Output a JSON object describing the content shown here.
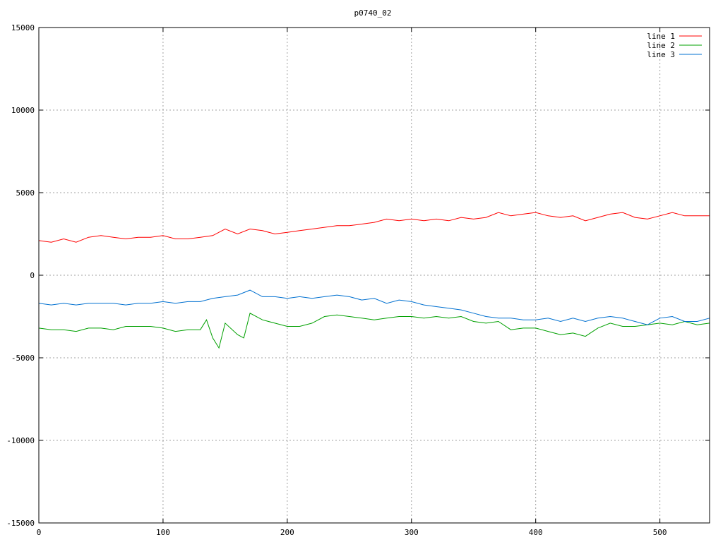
{
  "chart_data": {
    "type": "line",
    "title": "p0740_02",
    "xlabel": "",
    "ylabel": "",
    "xlim": [
      0,
      540
    ],
    "ylim": [
      -15000,
      15000
    ],
    "xticks": [
      0,
      100,
      200,
      300,
      400,
      500
    ],
    "yticks": [
      -15000,
      -10000,
      -5000,
      0,
      5000,
      10000,
      15000
    ],
    "grid": true,
    "legend_position": "top-right",
    "series": [
      {
        "name": "line 1",
        "color": "#ff0000",
        "x": [
          0,
          10,
          20,
          30,
          40,
          50,
          60,
          70,
          80,
          90,
          100,
          110,
          120,
          130,
          140,
          150,
          160,
          170,
          180,
          190,
          200,
          210,
          220,
          230,
          240,
          250,
          260,
          270,
          280,
          290,
          300,
          310,
          320,
          330,
          340,
          350,
          360,
          370,
          380,
          390,
          400,
          410,
          420,
          430,
          440,
          450,
          460,
          470,
          480,
          490,
          500,
          510,
          520,
          530,
          540
        ],
        "y": [
          2100,
          2000,
          2200,
          2000,
          2300,
          2400,
          2300,
          2200,
          2300,
          2300,
          2400,
          2200,
          2200,
          2300,
          2400,
          2800,
          2500,
          2800,
          2700,
          2500,
          2600,
          2700,
          2800,
          2900,
          3000,
          3000,
          3100,
          3200,
          3400,
          3300,
          3400,
          3300,
          3400,
          3300,
          3500,
          3400,
          3500,
          3800,
          3600,
          3700,
          3800,
          3600,
          3500,
          3600,
          3300,
          3500,
          3700,
          3800,
          3500,
          3400,
          3600,
          3800,
          3600,
          3600,
          3600
        ]
      },
      {
        "name": "line 2",
        "color": "#00a000",
        "x": [
          0,
          10,
          20,
          30,
          40,
          50,
          60,
          70,
          80,
          90,
          100,
          110,
          120,
          130,
          135,
          140,
          145,
          150,
          160,
          165,
          170,
          180,
          190,
          200,
          210,
          220,
          230,
          240,
          250,
          260,
          270,
          280,
          290,
          300,
          310,
          320,
          330,
          340,
          350,
          360,
          370,
          380,
          390,
          400,
          410,
          420,
          430,
          440,
          450,
          460,
          470,
          480,
          490,
          500,
          510,
          520,
          530,
          540
        ],
        "y": [
          -3200,
          -3300,
          -3300,
          -3400,
          -3200,
          -3200,
          -3300,
          -3100,
          -3100,
          -3100,
          -3200,
          -3400,
          -3300,
          -3300,
          -2700,
          -3800,
          -4400,
          -2900,
          -3600,
          -3800,
          -2300,
          -2700,
          -2900,
          -3100,
          -3100,
          -2900,
          -2500,
          -2400,
          -2500,
          -2600,
          -2700,
          -2600,
          -2500,
          -2500,
          -2600,
          -2500,
          -2600,
          -2500,
          -2800,
          -2900,
          -2800,
          -3300,
          -3200,
          -3200,
          -3400,
          -3600,
          -3500,
          -3700,
          -3200,
          -2900,
          -3100,
          -3100,
          -3000,
          -2900,
          -3000,
          -2800,
          -3000,
          -2900
        ]
      },
      {
        "name": "line 3",
        "color": "#0070d0",
        "x": [
          0,
          10,
          20,
          30,
          40,
          50,
          60,
          70,
          80,
          90,
          100,
          110,
          120,
          130,
          140,
          150,
          160,
          170,
          180,
          190,
          200,
          210,
          220,
          230,
          240,
          250,
          260,
          270,
          280,
          290,
          300,
          310,
          320,
          330,
          340,
          350,
          360,
          370,
          380,
          390,
          400,
          410,
          420,
          430,
          440,
          450,
          460,
          470,
          480,
          490,
          500,
          510,
          520,
          530,
          540
        ],
        "y": [
          -1700,
          -1800,
          -1700,
          -1800,
          -1700,
          -1700,
          -1700,
          -1800,
          -1700,
          -1700,
          -1600,
          -1700,
          -1600,
          -1600,
          -1400,
          -1300,
          -1200,
          -900,
          -1300,
          -1300,
          -1400,
          -1300,
          -1400,
          -1300,
          -1200,
          -1300,
          -1500,
          -1400,
          -1700,
          -1500,
          -1600,
          -1800,
          -1900,
          -2000,
          -2100,
          -2300,
          -2500,
          -2600,
          -2600,
          -2700,
          -2700,
          -2600,
          -2800,
          -2600,
          -2800,
          -2600,
          -2500,
          -2600,
          -2800,
          -3000,
          -2600,
          -2500,
          -2800,
          -2800,
          -2600
        ]
      }
    ]
  }
}
